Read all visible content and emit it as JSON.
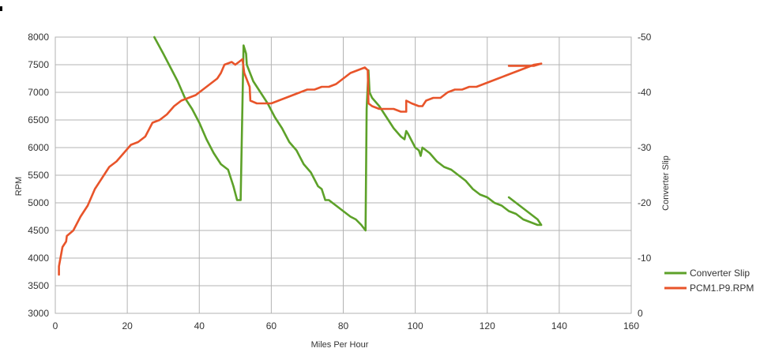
{
  "chart_data": {
    "type": "line",
    "xlabel": "Miles Per Hour",
    "ylabel": "RPM",
    "y2label": "Converter Slip",
    "xlim": [
      0,
      160
    ],
    "ylim": [
      3000,
      8000
    ],
    "y2lim": [
      0,
      -50
    ],
    "x_ticks": [
      "0",
      "20",
      "40",
      "60",
      "80",
      "100",
      "120",
      "140",
      "160"
    ],
    "y_ticks": [
      "3000",
      "3500",
      "4000",
      "4500",
      "5000",
      "5500",
      "6000",
      "6500",
      "7000",
      "7500",
      "8000"
    ],
    "y2_ticks": [
      "0",
      "-10",
      "-20",
      "-30",
      "-40",
      "-50"
    ],
    "grid": true,
    "legend_position": "right",
    "series": [
      {
        "name": "Converter Slip",
        "axis": "right",
        "color": "#5da129",
        "points": [
          [
            27.5,
            -50
          ],
          [
            30,
            -47
          ],
          [
            32,
            -44.5
          ],
          [
            34,
            -42
          ],
          [
            36,
            -39
          ],
          [
            38,
            -37
          ],
          [
            40,
            -34.5
          ],
          [
            42,
            -31.5
          ],
          [
            44,
            -29
          ],
          [
            46,
            -27
          ],
          [
            48,
            -26
          ],
          [
            49.5,
            -23
          ],
          [
            50.5,
            -20.5
          ],
          [
            51.5,
            -20.5
          ],
          [
            52.3,
            -48.5
          ],
          [
            53,
            -47
          ],
          [
            53.2,
            -45
          ],
          [
            55,
            -42
          ],
          [
            57,
            -40
          ],
          [
            59,
            -38
          ],
          [
            61,
            -35.5
          ],
          [
            63,
            -33.5
          ],
          [
            65,
            -31
          ],
          [
            67,
            -29.5
          ],
          [
            69,
            -27
          ],
          [
            71,
            -25.5
          ],
          [
            73,
            -23
          ],
          [
            74,
            -22.5
          ],
          [
            75,
            -20.5
          ],
          [
            76,
            -20.5
          ],
          [
            77,
            -20
          ],
          [
            78,
            -19.5
          ],
          [
            80,
            -18.5
          ],
          [
            82,
            -17.5
          ],
          [
            83.5,
            -17
          ],
          [
            85,
            -16
          ],
          [
            86.2,
            -15
          ],
          [
            86.5,
            -37
          ],
          [
            87,
            -44
          ],
          [
            87.3,
            -40
          ],
          [
            88,
            -39
          ],
          [
            90,
            -37.5
          ],
          [
            92,
            -35.5
          ],
          [
            94,
            -33.5
          ],
          [
            96,
            -32
          ],
          [
            97,
            -31.5
          ],
          [
            97.5,
            -33
          ],
          [
            98,
            -32.5
          ],
          [
            100,
            -30
          ],
          [
            101,
            -29.5
          ],
          [
            101.5,
            -28.5
          ],
          [
            102,
            -30
          ],
          [
            104,
            -29
          ],
          [
            106,
            -27.5
          ],
          [
            108,
            -26.5
          ],
          [
            110,
            -26
          ],
          [
            112,
            -25
          ],
          [
            114,
            -24
          ],
          [
            116,
            -22.5
          ],
          [
            118,
            -21.5
          ],
          [
            120,
            -21
          ],
          [
            122,
            -20
          ],
          [
            124,
            -19.5
          ],
          [
            126,
            -18.5
          ],
          [
            128,
            -18
          ],
          [
            130,
            -17
          ],
          [
            132,
            -16.5
          ],
          [
            134,
            -16
          ],
          [
            135,
            -16
          ],
          [
            134,
            -17
          ],
          [
            132,
            -18
          ],
          [
            130,
            -19
          ],
          [
            128,
            -20
          ],
          [
            126,
            -21
          ]
        ]
      },
      {
        "name": "PCM1.P9.RPM",
        "axis": "left",
        "color": "#e8542a",
        "points": [
          [
            1,
            3700
          ],
          [
            1,
            3850
          ],
          [
            2,
            4200
          ],
          [
            3,
            4300
          ],
          [
            3.2,
            4400
          ],
          [
            5,
            4500
          ],
          [
            7,
            4750
          ],
          [
            9,
            4950
          ],
          [
            11,
            5250
          ],
          [
            13,
            5450
          ],
          [
            15,
            5650
          ],
          [
            17,
            5750
          ],
          [
            19,
            5900
          ],
          [
            21,
            6050
          ],
          [
            23,
            6100
          ],
          [
            25,
            6200
          ],
          [
            27,
            6450
          ],
          [
            29,
            6500
          ],
          [
            31,
            6600
          ],
          [
            33,
            6750
          ],
          [
            35,
            6850
          ],
          [
            37,
            6900
          ],
          [
            39,
            6950
          ],
          [
            41,
            7050
          ],
          [
            43,
            7150
          ],
          [
            45,
            7250
          ],
          [
            46,
            7350
          ],
          [
            47,
            7500
          ],
          [
            49,
            7550
          ],
          [
            50,
            7500
          ],
          [
            51,
            7550
          ],
          [
            52,
            7600
          ],
          [
            52.5,
            7350
          ],
          [
            54,
            7100
          ],
          [
            54.2,
            6850
          ],
          [
            56,
            6800
          ],
          [
            58,
            6800
          ],
          [
            60,
            6800
          ],
          [
            62,
            6850
          ],
          [
            64,
            6900
          ],
          [
            66,
            6950
          ],
          [
            68,
            7000
          ],
          [
            70,
            7050
          ],
          [
            72,
            7050
          ],
          [
            74,
            7100
          ],
          [
            76,
            7100
          ],
          [
            78,
            7150
          ],
          [
            80,
            7250
          ],
          [
            82,
            7350
          ],
          [
            84,
            7400
          ],
          [
            86,
            7450
          ],
          [
            86.8,
            7400
          ],
          [
            87,
            6800
          ],
          [
            88,
            6750
          ],
          [
            90,
            6700
          ],
          [
            92,
            6700
          ],
          [
            94,
            6700
          ],
          [
            96,
            6650
          ],
          [
            97.5,
            6650
          ],
          [
            97.5,
            6850
          ],
          [
            99,
            6800
          ],
          [
            101,
            6750
          ],
          [
            102,
            6750
          ],
          [
            103,
            6850
          ],
          [
            105,
            6900
          ],
          [
            107,
            6900
          ],
          [
            109,
            7000
          ],
          [
            111,
            7050
          ],
          [
            113,
            7050
          ],
          [
            115,
            7100
          ],
          [
            117,
            7100
          ],
          [
            119,
            7150
          ],
          [
            121,
            7200
          ],
          [
            123,
            7250
          ],
          [
            125,
            7300
          ],
          [
            127,
            7350
          ],
          [
            129,
            7400
          ],
          [
            131,
            7450
          ],
          [
            133,
            7500
          ],
          [
            135,
            7520
          ],
          [
            133,
            7480
          ],
          [
            130,
            7480
          ],
          [
            127,
            7480
          ],
          [
            126,
            7480
          ]
        ]
      }
    ]
  }
}
